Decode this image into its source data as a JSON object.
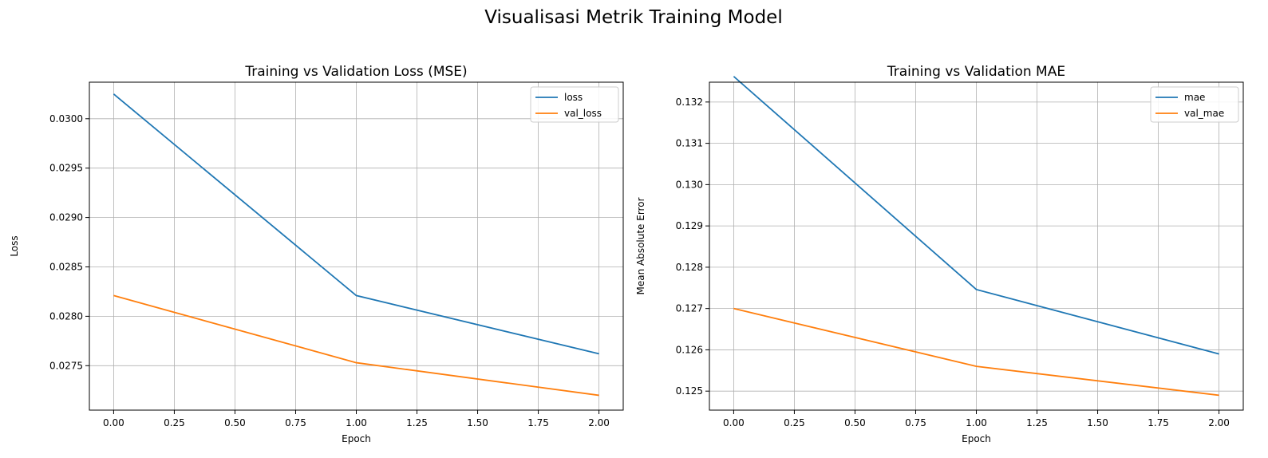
{
  "suptitle": "Visualisasi Metrik Training Model",
  "chart_data": [
    {
      "type": "line",
      "title": "Training vs Validation Loss (MSE)",
      "xlabel": "Epoch",
      "ylabel": "Loss",
      "x": [
        0,
        1,
        2
      ],
      "xlim": [
        -0.1,
        2.1
      ],
      "ylim": [
        0.02705,
        0.03037
      ],
      "xticks": [
        0.0,
        0.25,
        0.5,
        0.75,
        1.0,
        1.25,
        1.5,
        1.75,
        2.0
      ],
      "xtick_labels": [
        "0.00",
        "0.25",
        "0.50",
        "0.75",
        "1.00",
        "1.25",
        "1.50",
        "1.75",
        "2.00"
      ],
      "yticks": [
        0.0275,
        0.028,
        0.0285,
        0.029,
        0.0295,
        0.03
      ],
      "ytick_labels": [
        "0.0275",
        "0.0280",
        "0.0285",
        "0.0290",
        "0.0295",
        "0.0300"
      ],
      "grid": true,
      "legend": "upper right",
      "series": [
        {
          "name": "loss",
          "color": "#1f77b4",
          "values": [
            0.03025,
            0.02821,
            0.02762
          ]
        },
        {
          "name": "val_loss",
          "color": "#ff7f0e",
          "values": [
            0.02821,
            0.02753,
            0.0272
          ]
        }
      ]
    },
    {
      "type": "line",
      "title": "Training vs Validation MAE",
      "xlabel": "Epoch",
      "ylabel": "Mean Absolute Error",
      "x": [
        0,
        1,
        2
      ],
      "xlim": [
        -0.1,
        2.1
      ],
      "ylim": [
        0.12454,
        0.13248
      ],
      "xticks": [
        0.0,
        0.25,
        0.5,
        0.75,
        1.0,
        1.25,
        1.5,
        1.75,
        2.0
      ],
      "xtick_labels": [
        "0.00",
        "0.25",
        "0.50",
        "0.75",
        "1.00",
        "1.25",
        "1.50",
        "1.75",
        "2.00"
      ],
      "yticks": [
        0.125,
        0.126,
        0.127,
        0.128,
        0.129,
        0.13,
        0.131,
        0.132
      ],
      "ytick_labels": [
        "0.125",
        "0.126",
        "0.127",
        "0.128",
        "0.129",
        "0.130",
        "0.131",
        "0.132"
      ],
      "grid": true,
      "legend": "upper right",
      "series": [
        {
          "name": "mae",
          "color": "#1f77b4",
          "values": [
            0.13262,
            0.12746,
            0.1259
          ]
        },
        {
          "name": "val_mae",
          "color": "#ff7f0e",
          "values": [
            0.127,
            0.1256,
            0.1249
          ]
        }
      ]
    }
  ]
}
